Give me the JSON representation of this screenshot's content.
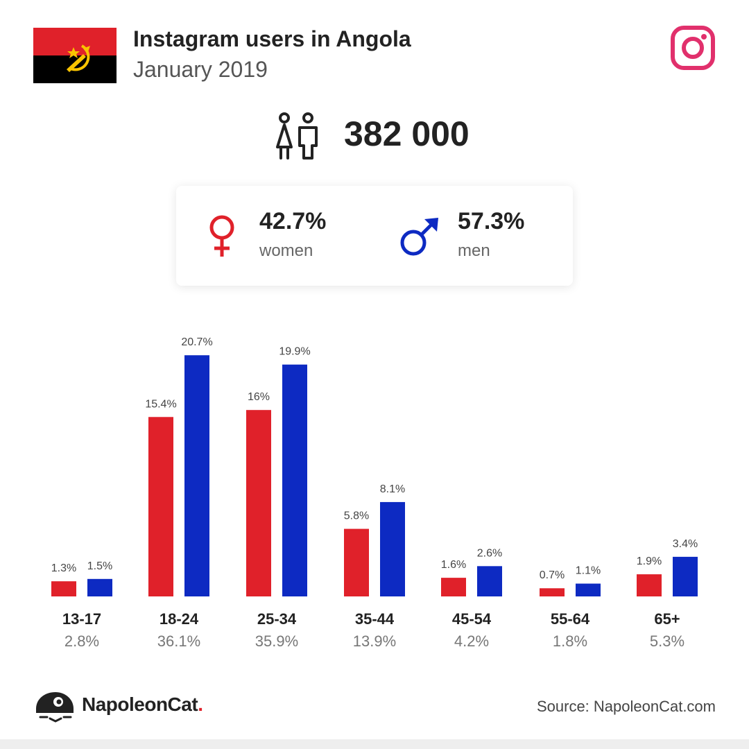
{
  "header": {
    "title": "Instagram users in Angola",
    "subtitle": "January 2019"
  },
  "total": {
    "value": "382 000"
  },
  "gender": {
    "women_pct": "42.7%",
    "women_label": "women",
    "men_pct": "57.3%",
    "men_label": "men"
  },
  "colors": {
    "women": "#e0212a",
    "men": "#0d2ac2",
    "instagram": "#e1306c"
  },
  "icons": {
    "flag": "angola-flag-icon",
    "instagram": "instagram-icon",
    "people": "people-icon",
    "female": "female-symbol-icon",
    "male": "male-symbol-icon",
    "brand": "napoleoncat-logo-icon"
  },
  "chart_data": {
    "type": "bar",
    "categories": [
      "13-17",
      "18-24",
      "25-34",
      "35-44",
      "45-54",
      "55-64",
      "65+"
    ],
    "totals": [
      "2.8%",
      "36.1%",
      "35.9%",
      "13.9%",
      "4.2%",
      "1.8%",
      "5.3%"
    ],
    "series": [
      {
        "values": [
          1.3,
          15.4,
          16,
          5.8,
          1.6,
          0.7,
          1.9
        ],
        "labels": [
          "1.3%",
          "15.4%",
          "16%",
          "5.8%",
          "1.6%",
          "0.7%",
          "1.9%"
        ]
      },
      {
        "values": [
          1.5,
          20.7,
          19.9,
          8.1,
          2.6,
          1.1,
          3.4
        ],
        "labels": [
          "1.5%",
          "20.7%",
          "19.9%",
          "8.1%",
          "2.6%",
          "1.1%",
          "3.4%"
        ]
      }
    ]
  },
  "footer": {
    "brand": "NapoleonCat",
    "brand_dot": ".",
    "source": "Source: NapoleonCat.com"
  }
}
